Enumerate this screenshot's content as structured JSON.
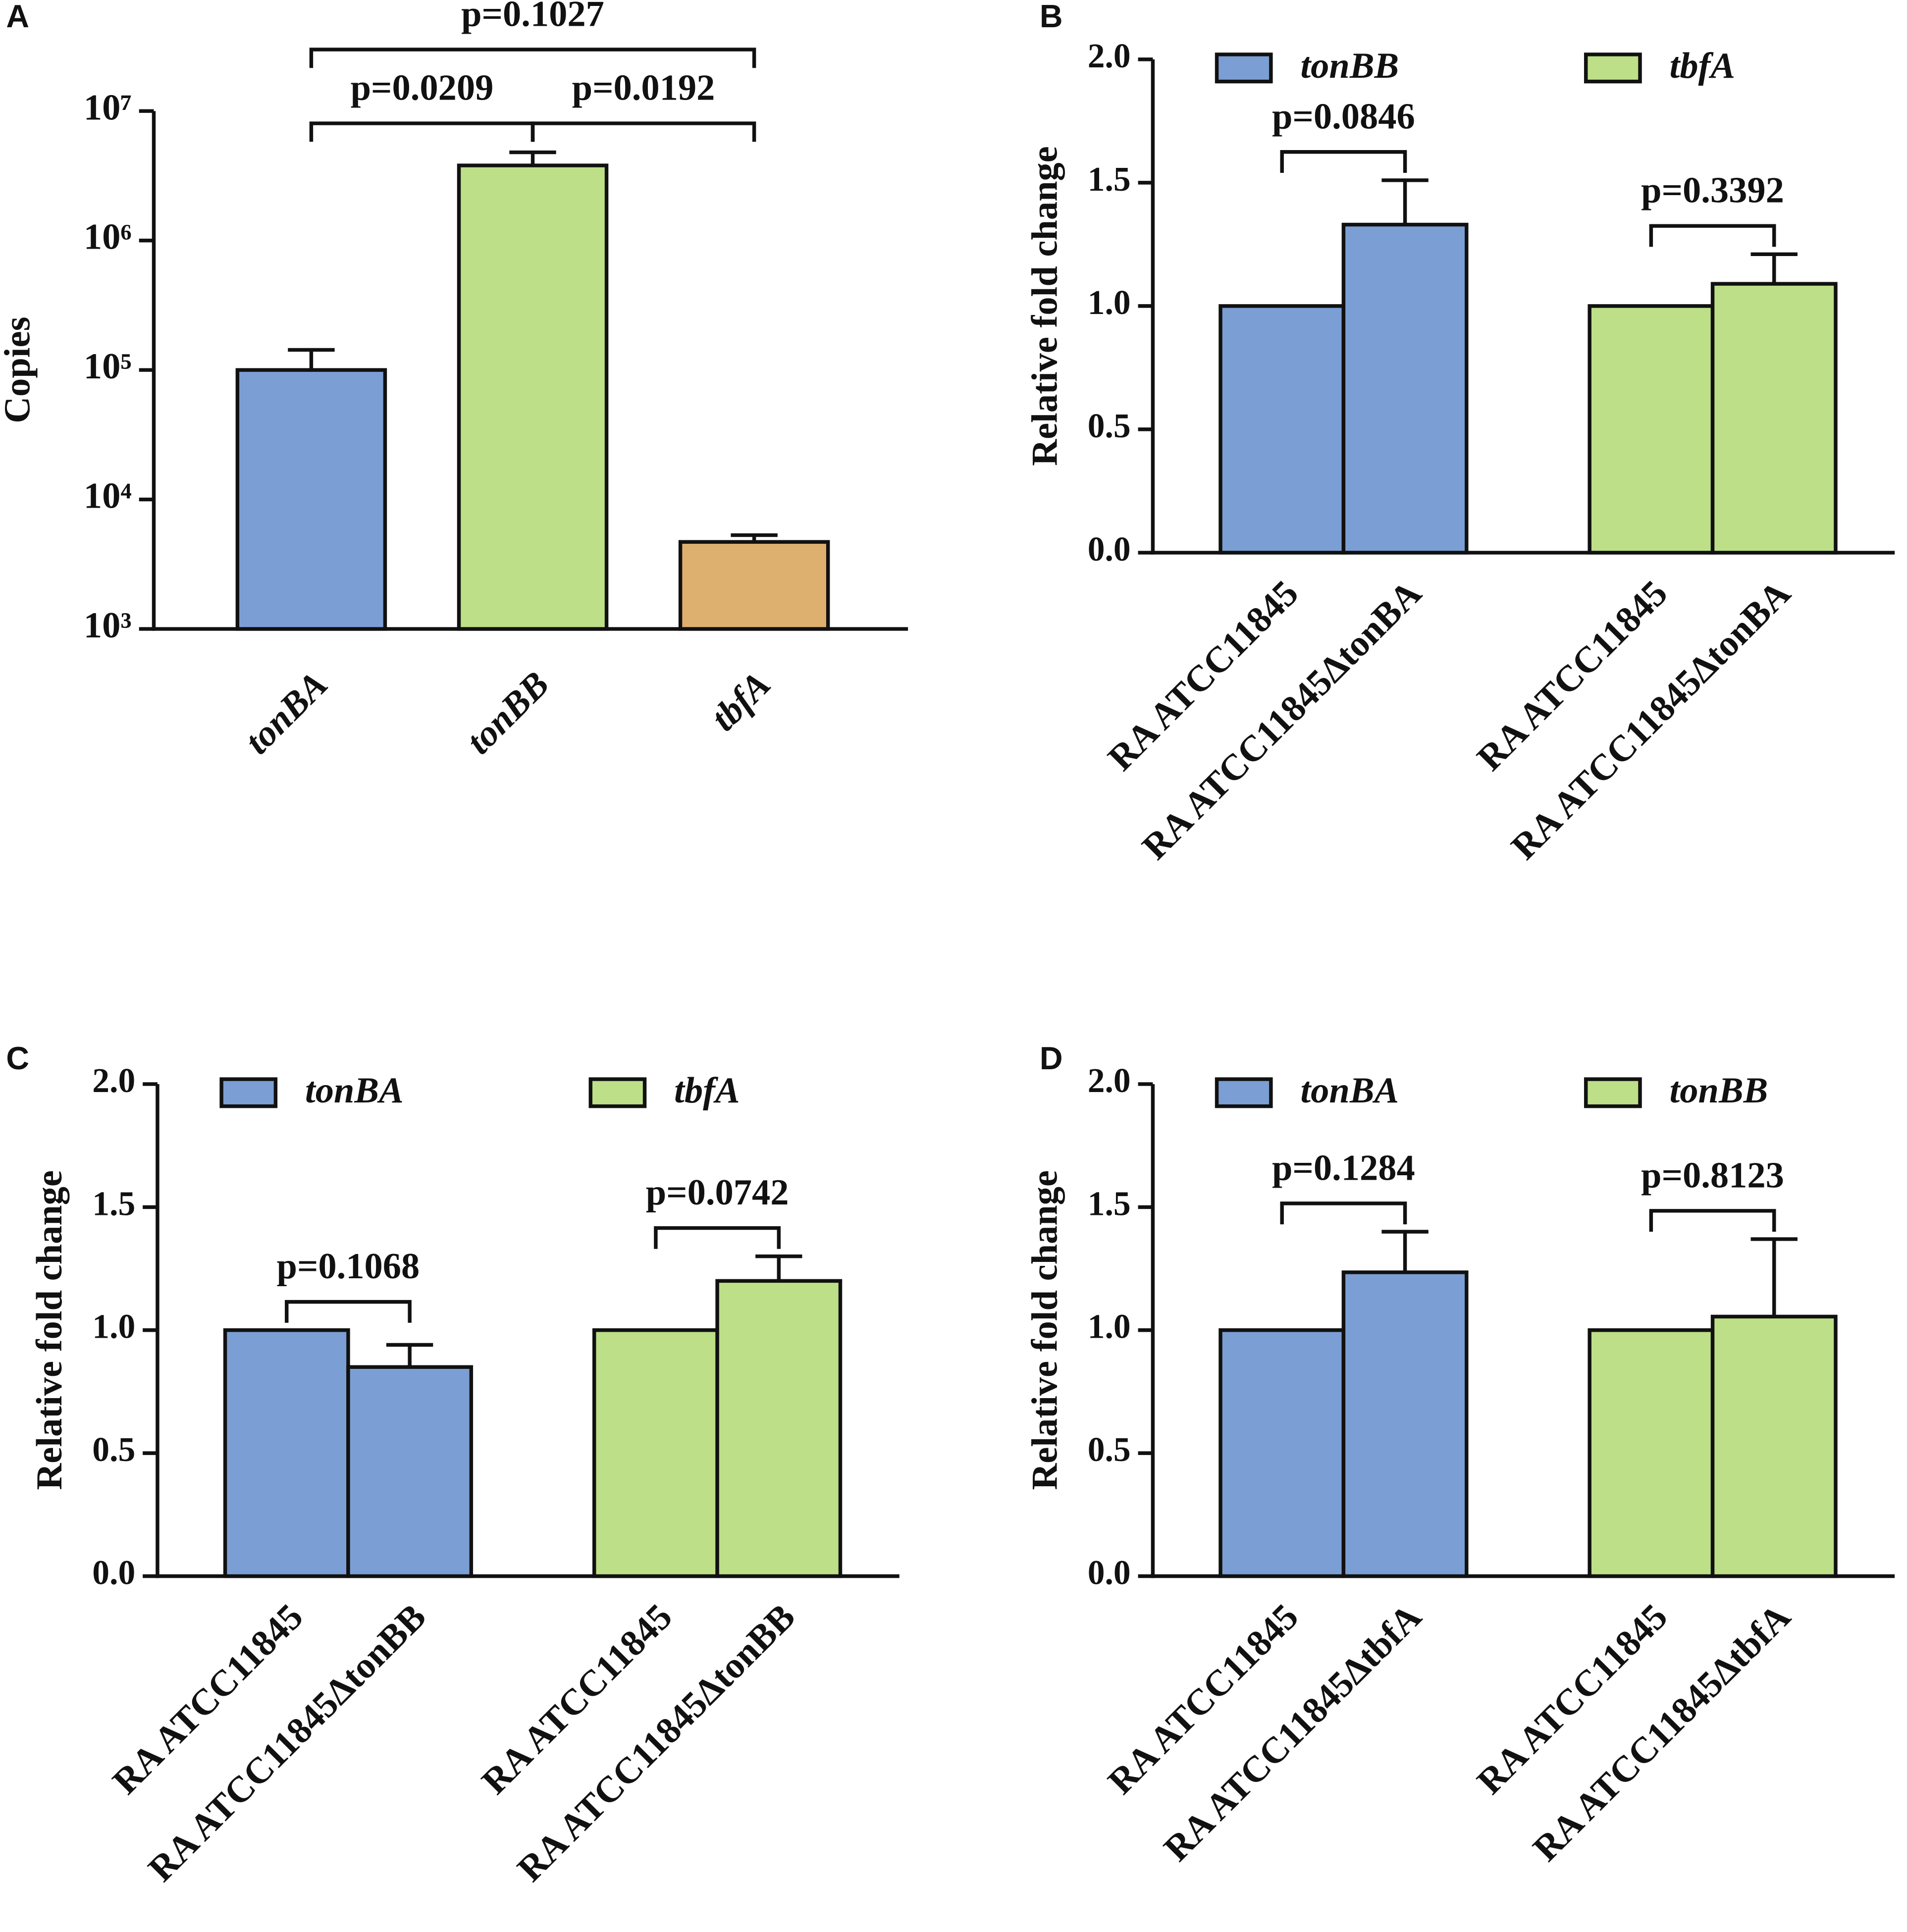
{
  "chart_data": [
    {
      "type": "bar",
      "panel": "A",
      "log_scale": true,
      "ylabel": "Copies",
      "categories": [
        "tonBA",
        "tonBB",
        "tbfA"
      ],
      "values": [
        100000,
        3800000,
        4700
      ],
      "errors": [
        43000,
        1000000,
        600
      ],
      "colors": [
        "#7b9fd4",
        "#bddf87",
        "#deb06f"
      ],
      "ylim": [
        1000,
        10000000
      ],
      "yticks": [
        {
          "value": 1000,
          "label": "10³"
        },
        {
          "value": 10000,
          "label": "10⁴"
        },
        {
          "value": 100000,
          "label": "10⁵"
        },
        {
          "value": 1000000,
          "label": "10⁶"
        },
        {
          "value": 10000000,
          "label": "10⁷"
        }
      ],
      "comparisons": [
        {
          "between": [
            "tonBA",
            "tonBB"
          ],
          "label": "p=0.0209"
        },
        {
          "between": [
            "tonBB",
            "tbfA"
          ],
          "label": "p=0.0192"
        },
        {
          "between": [
            "tonBA",
            "tbfA"
          ],
          "label": "p=0.1027"
        }
      ]
    },
    {
      "type": "grouped_bar",
      "panel": "B",
      "ylabel": "Relative fold change",
      "legend": "top",
      "categories": [
        "RA ATCC11845",
        "RA ATCC11845ΔtonBA"
      ],
      "series": [
        {
          "name": "tonBB",
          "color": "#7b9fd4",
          "values": [
            1.0,
            1.33
          ],
          "errors": [
            null,
            0.18
          ],
          "p": "p=0.0846"
        },
        {
          "name": "tbfA",
          "color": "#bddf87",
          "values": [
            1.0,
            1.09
          ],
          "errors": [
            null,
            0.12
          ],
          "p": "p=0.3392"
        }
      ],
      "ylim": [
        0,
        2
      ],
      "yticks": [
        {
          "value": 0,
          "label": "0.0"
        },
        {
          "value": 0.5,
          "label": "0.5"
        },
        {
          "value": 1,
          "label": "1.0"
        },
        {
          "value": 1.5,
          "label": "1.5"
        },
        {
          "value": 2,
          "label": "2.0"
        }
      ]
    },
    {
      "type": "grouped_bar",
      "panel": "C",
      "ylabel": "Relative fold change",
      "legend": "top",
      "categories": [
        "RA ATCC11845",
        "RA ATCC11845ΔtonBB"
      ],
      "series": [
        {
          "name": "tonBA",
          "color": "#7b9fd4",
          "values": [
            1.0,
            0.85
          ],
          "errors": [
            null,
            0.09
          ],
          "p": "p=0.1068"
        },
        {
          "name": "tbfA",
          "color": "#bddf87",
          "values": [
            1.0,
            1.2
          ],
          "errors": [
            null,
            0.1
          ],
          "p": "p=0.0742"
        }
      ],
      "ylim": [
        0,
        2
      ],
      "yticks": [
        {
          "value": 0,
          "label": "0.0"
        },
        {
          "value": 0.5,
          "label": "0.5"
        },
        {
          "value": 1,
          "label": "1.0"
        },
        {
          "value": 1.5,
          "label": "1.5"
        },
        {
          "value": 2,
          "label": "2.0"
        }
      ]
    },
    {
      "type": "grouped_bar",
      "panel": "D",
      "ylabel": "Relative fold change",
      "legend": "top",
      "categories": [
        "RA ATCC11845",
        "RA ATCC11845ΔtbfA"
      ],
      "series": [
        {
          "name": "tonBA",
          "color": "#7b9fd4",
          "values": [
            1.0,
            1.235
          ],
          "errors": [
            null,
            0.165
          ],
          "p": "p=0.1284"
        },
        {
          "name": "tonBB",
          "color": "#bddf87",
          "values": [
            1.0,
            1.055
          ],
          "errors": [
            null,
            0.315
          ],
          "p": "p=0.8123"
        }
      ],
      "ylim": [
        0,
        2
      ],
      "yticks": [
        {
          "value": 0,
          "label": "0.0"
        },
        {
          "value": 0.5,
          "label": "0.5"
        },
        {
          "value": 1,
          "label": "1.0"
        },
        {
          "value": 1.5,
          "label": "1.5"
        },
        {
          "value": 2,
          "label": "2.0"
        }
      ]
    }
  ]
}
